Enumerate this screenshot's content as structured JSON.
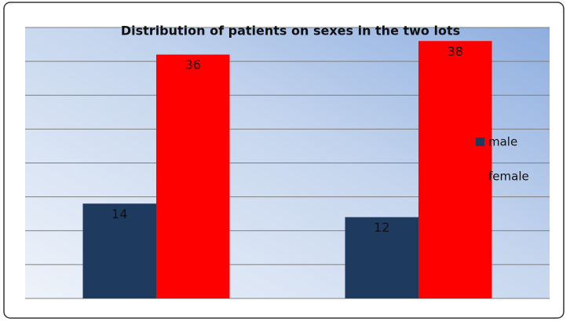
{
  "chart_data": {
    "type": "bar",
    "title": "Distribution of patients on sexes in the two lots",
    "categories": [
      null,
      null
    ],
    "series": [
      {
        "name": "male",
        "color": "#1f3a5f",
        "values": [
          14,
          12
        ]
      },
      {
        "name": "female",
        "color": "#ff0000",
        "values": [
          36,
          38
        ]
      }
    ],
    "ylim": [
      0,
      40
    ],
    "yticks": [
      0,
      5,
      10,
      15,
      20,
      25,
      30,
      35,
      40
    ],
    "grid": true,
    "legend": "right"
  }
}
